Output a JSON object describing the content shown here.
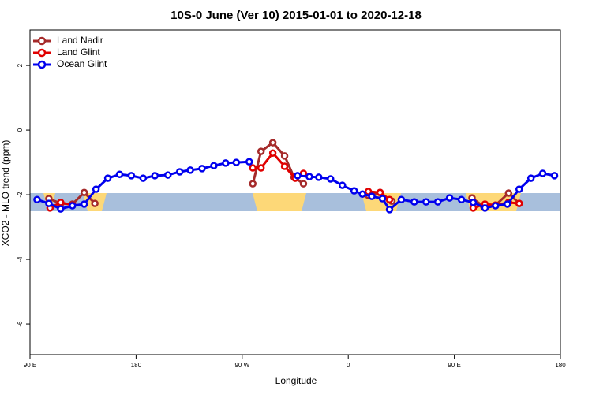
{
  "chart_data": {
    "type": "line",
    "title": "10S-0 June (Ver 10)   2015-01-01 to 2020-12-18",
    "xlabel": "Longitude",
    "ylabel": "XCO2 - MLO trend (ppm)",
    "xlim": [
      90,
      540
    ],
    "xticks": [
      {
        "value": 90,
        "label": "90 E"
      },
      180,
      {
        "value": 270,
        "label": "90 W"
      },
      {
        "value": 360,
        "label": "0"
      },
      {
        "value": 450,
        "label": "90 E"
      },
      {
        "value": 540,
        "label": "180"
      }
    ],
    "ylim": [
      -6.95,
      3.1
    ],
    "yticks": [
      2,
      0,
      -2,
      -4,
      -6
    ],
    "legend": "top-left",
    "series": [
      {
        "name": "Land Nadir",
        "color": "#a52a2a",
        "x": [
          106,
          116,
          126,
          136,
          145,
          null,
          279,
          286,
          296,
          306,
          314,
          322,
          null,
          377,
          387,
          397,
          null,
          465,
          475,
          485,
          496,
          505
        ],
        "values": [
          -2.12,
          -2.27,
          -2.29,
          -1.93,
          -2.27,
          null,
          -1.66,
          -0.66,
          -0.39,
          -0.8,
          -1.46,
          -1.66,
          null,
          -2.02,
          -1.93,
          -2.2,
          null,
          -2.1,
          -2.37,
          -2.32,
          -1.95,
          -2.27
        ]
      },
      {
        "name": "Land Glint",
        "color": "#e00000",
        "x": [
          107,
          116,
          126,
          null,
          279,
          286,
          296,
          306,
          315,
          322,
          null,
          377,
          387,
          395,
          null,
          466,
          476,
          485,
          496,
          505
        ],
        "values": [
          -2.41,
          -2.24,
          -2.32,
          null,
          -1.17,
          -1.17,
          -0.71,
          -1.12,
          -1.49,
          -1.34,
          null,
          -1.9,
          -1.93,
          -2.15,
          null,
          -2.41,
          -2.29,
          -2.32,
          -2.24,
          -2.27
        ]
      },
      {
        "name": "Ocean Glint",
        "color": "#0000ee",
        "x": [
          96,
          106,
          116,
          126,
          136,
          146,
          156,
          166,
          176,
          186,
          196,
          207,
          217,
          226,
          236,
          246,
          256,
          265,
          276,
          null,
          317,
          327,
          335,
          345,
          355,
          365,
          372,
          380,
          389,
          395,
          405,
          416,
          426,
          436,
          446,
          456,
          466,
          476,
          485,
          495,
          505,
          515,
          525,
          535
        ],
        "values": [
          -2.15,
          -2.27,
          -2.44,
          -2.34,
          -2.29,
          -1.83,
          -1.49,
          -1.37,
          -1.41,
          -1.49,
          -1.41,
          -1.39,
          -1.29,
          -1.24,
          -1.19,
          -1.1,
          -1.02,
          -1.0,
          -0.98,
          null,
          -1.41,
          -1.44,
          -1.46,
          -1.51,
          -1.71,
          -1.88,
          -1.98,
          -2.05,
          -2.12,
          -2.46,
          -2.15,
          -2.22,
          -2.22,
          -2.22,
          -2.1,
          -2.15,
          -2.24,
          -2.41,
          -2.34,
          -2.29,
          -1.83,
          -1.49,
          -1.34,
          -1.41
        ]
      }
    ]
  }
}
